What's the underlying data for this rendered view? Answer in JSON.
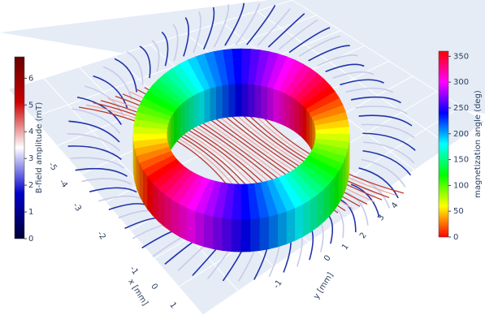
{
  "chart_data": {
    "type": "scene3d",
    "xaxis": {
      "title": "x [mm]",
      "ticks": [
        -5,
        -4,
        -3,
        -2,
        -1,
        0,
        1
      ]
    },
    "yaxis": {
      "title": "y [mm]",
      "ticks": [
        -1,
        0,
        1,
        2,
        3,
        4
      ]
    },
    "colorbars": [
      {
        "title": "B-field amplitude (mT)",
        "lim": [
          0,
          6.8
        ],
        "ticks": [
          0,
          1,
          2,
          3,
          4,
          5,
          6
        ],
        "colors": [
          "#000033",
          "#0000cc",
          "#ffffff",
          "#cc0000",
          "#660000"
        ]
      },
      {
        "title": "magnetization angle (deg)",
        "lim": [
          0,
          360
        ],
        "ticks": [
          0,
          50,
          100,
          150,
          200,
          250,
          300,
          350
        ],
        "colors": [
          "#ff0000",
          "#ffff00",
          "#00ff00",
          "#00ffff",
          "#0000ff",
          "#ff00ff",
          "#ff0000"
        ]
      }
    ]
  }
}
